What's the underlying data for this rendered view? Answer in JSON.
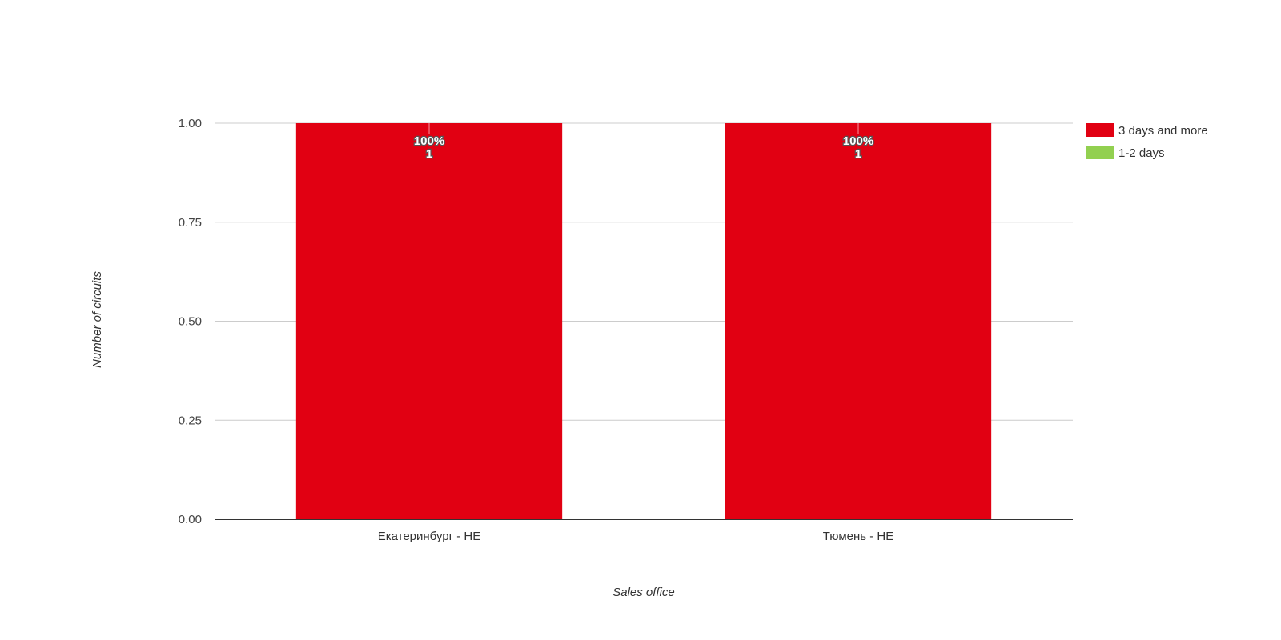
{
  "chart_data": {
    "type": "bar",
    "stacked": true,
    "categories": [
      "Екатеринбург - НЕ",
      "Тюмень - НЕ"
    ],
    "series": [
      {
        "name": "3 days and more",
        "color": "#e10012",
        "values": [
          1,
          1
        ],
        "percent_labels": [
          "100%",
          "100%"
        ],
        "value_labels": [
          "1",
          "1"
        ]
      },
      {
        "name": "1-2 days",
        "color": "#92d050",
        "values": [
          0,
          0
        ]
      }
    ],
    "xlabel": "Sales office",
    "ylabel": "Number of circuits",
    "ylim": [
      0,
      1
    ],
    "yticks": [
      "0.00",
      "0.25",
      "0.50",
      "0.75",
      "1.00"
    ],
    "grid": true,
    "legend": "right"
  }
}
